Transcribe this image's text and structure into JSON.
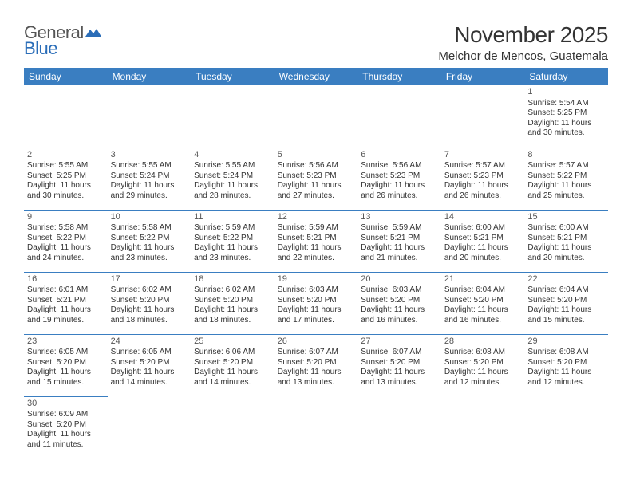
{
  "logo": {
    "part1": "General",
    "part2": "Blue"
  },
  "title": "November 2025",
  "location": "Melchor de Mencos, Guatemala",
  "colors": {
    "header_bg": "#3a7ec1",
    "header_text": "#ffffff",
    "border": "#3a7ec1",
    "text": "#333333",
    "logo_gray": "#555555",
    "logo_blue": "#2a6db8",
    "background": "#ffffff"
  },
  "typography": {
    "title_fontsize": 28,
    "location_fontsize": 15,
    "dayheader_fontsize": 12,
    "cell_fontsize": 10,
    "daynum_fontsize": 11
  },
  "day_headers": [
    "Sunday",
    "Monday",
    "Tuesday",
    "Wednesday",
    "Thursday",
    "Friday",
    "Saturday"
  ],
  "weeks": [
    [
      null,
      null,
      null,
      null,
      null,
      null,
      {
        "n": "1",
        "sr": "Sunrise: 5:54 AM",
        "ss": "Sunset: 5:25 PM",
        "d1": "Daylight: 11 hours",
        "d2": "and 30 minutes."
      }
    ],
    [
      {
        "n": "2",
        "sr": "Sunrise: 5:55 AM",
        "ss": "Sunset: 5:25 PM",
        "d1": "Daylight: 11 hours",
        "d2": "and 30 minutes."
      },
      {
        "n": "3",
        "sr": "Sunrise: 5:55 AM",
        "ss": "Sunset: 5:24 PM",
        "d1": "Daylight: 11 hours",
        "d2": "and 29 minutes."
      },
      {
        "n": "4",
        "sr": "Sunrise: 5:55 AM",
        "ss": "Sunset: 5:24 PM",
        "d1": "Daylight: 11 hours",
        "d2": "and 28 minutes."
      },
      {
        "n": "5",
        "sr": "Sunrise: 5:56 AM",
        "ss": "Sunset: 5:23 PM",
        "d1": "Daylight: 11 hours",
        "d2": "and 27 minutes."
      },
      {
        "n": "6",
        "sr": "Sunrise: 5:56 AM",
        "ss": "Sunset: 5:23 PM",
        "d1": "Daylight: 11 hours",
        "d2": "and 26 minutes."
      },
      {
        "n": "7",
        "sr": "Sunrise: 5:57 AM",
        "ss": "Sunset: 5:23 PM",
        "d1": "Daylight: 11 hours",
        "d2": "and 26 minutes."
      },
      {
        "n": "8",
        "sr": "Sunrise: 5:57 AM",
        "ss": "Sunset: 5:22 PM",
        "d1": "Daylight: 11 hours",
        "d2": "and 25 minutes."
      }
    ],
    [
      {
        "n": "9",
        "sr": "Sunrise: 5:58 AM",
        "ss": "Sunset: 5:22 PM",
        "d1": "Daylight: 11 hours",
        "d2": "and 24 minutes."
      },
      {
        "n": "10",
        "sr": "Sunrise: 5:58 AM",
        "ss": "Sunset: 5:22 PM",
        "d1": "Daylight: 11 hours",
        "d2": "and 23 minutes."
      },
      {
        "n": "11",
        "sr": "Sunrise: 5:59 AM",
        "ss": "Sunset: 5:22 PM",
        "d1": "Daylight: 11 hours",
        "d2": "and 23 minutes."
      },
      {
        "n": "12",
        "sr": "Sunrise: 5:59 AM",
        "ss": "Sunset: 5:21 PM",
        "d1": "Daylight: 11 hours",
        "d2": "and 22 minutes."
      },
      {
        "n": "13",
        "sr": "Sunrise: 5:59 AM",
        "ss": "Sunset: 5:21 PM",
        "d1": "Daylight: 11 hours",
        "d2": "and 21 minutes."
      },
      {
        "n": "14",
        "sr": "Sunrise: 6:00 AM",
        "ss": "Sunset: 5:21 PM",
        "d1": "Daylight: 11 hours",
        "d2": "and 20 minutes."
      },
      {
        "n": "15",
        "sr": "Sunrise: 6:00 AM",
        "ss": "Sunset: 5:21 PM",
        "d1": "Daylight: 11 hours",
        "d2": "and 20 minutes."
      }
    ],
    [
      {
        "n": "16",
        "sr": "Sunrise: 6:01 AM",
        "ss": "Sunset: 5:21 PM",
        "d1": "Daylight: 11 hours",
        "d2": "and 19 minutes."
      },
      {
        "n": "17",
        "sr": "Sunrise: 6:02 AM",
        "ss": "Sunset: 5:20 PM",
        "d1": "Daylight: 11 hours",
        "d2": "and 18 minutes."
      },
      {
        "n": "18",
        "sr": "Sunrise: 6:02 AM",
        "ss": "Sunset: 5:20 PM",
        "d1": "Daylight: 11 hours",
        "d2": "and 18 minutes."
      },
      {
        "n": "19",
        "sr": "Sunrise: 6:03 AM",
        "ss": "Sunset: 5:20 PM",
        "d1": "Daylight: 11 hours",
        "d2": "and 17 minutes."
      },
      {
        "n": "20",
        "sr": "Sunrise: 6:03 AM",
        "ss": "Sunset: 5:20 PM",
        "d1": "Daylight: 11 hours",
        "d2": "and 16 minutes."
      },
      {
        "n": "21",
        "sr": "Sunrise: 6:04 AM",
        "ss": "Sunset: 5:20 PM",
        "d1": "Daylight: 11 hours",
        "d2": "and 16 minutes."
      },
      {
        "n": "22",
        "sr": "Sunrise: 6:04 AM",
        "ss": "Sunset: 5:20 PM",
        "d1": "Daylight: 11 hours",
        "d2": "and 15 minutes."
      }
    ],
    [
      {
        "n": "23",
        "sr": "Sunrise: 6:05 AM",
        "ss": "Sunset: 5:20 PM",
        "d1": "Daylight: 11 hours",
        "d2": "and 15 minutes."
      },
      {
        "n": "24",
        "sr": "Sunrise: 6:05 AM",
        "ss": "Sunset: 5:20 PM",
        "d1": "Daylight: 11 hours",
        "d2": "and 14 minutes."
      },
      {
        "n": "25",
        "sr": "Sunrise: 6:06 AM",
        "ss": "Sunset: 5:20 PM",
        "d1": "Daylight: 11 hours",
        "d2": "and 14 minutes."
      },
      {
        "n": "26",
        "sr": "Sunrise: 6:07 AM",
        "ss": "Sunset: 5:20 PM",
        "d1": "Daylight: 11 hours",
        "d2": "and 13 minutes."
      },
      {
        "n": "27",
        "sr": "Sunrise: 6:07 AM",
        "ss": "Sunset: 5:20 PM",
        "d1": "Daylight: 11 hours",
        "d2": "and 13 minutes."
      },
      {
        "n": "28",
        "sr": "Sunrise: 6:08 AM",
        "ss": "Sunset: 5:20 PM",
        "d1": "Daylight: 11 hours",
        "d2": "and 12 minutes."
      },
      {
        "n": "29",
        "sr": "Sunrise: 6:08 AM",
        "ss": "Sunset: 5:20 PM",
        "d1": "Daylight: 11 hours",
        "d2": "and 12 minutes."
      }
    ],
    [
      {
        "n": "30",
        "sr": "Sunrise: 6:09 AM",
        "ss": "Sunset: 5:20 PM",
        "d1": "Daylight: 11 hours",
        "d2": "and 11 minutes."
      },
      null,
      null,
      null,
      null,
      null,
      null
    ]
  ]
}
